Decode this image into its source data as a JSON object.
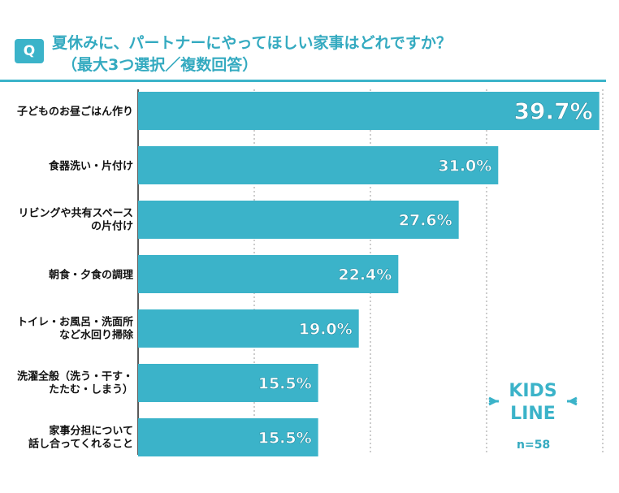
{
  "header": {
    "badge": "Q",
    "title_line1": "夏休みに、パートナーにやってほしい家事はどれですか？",
    "title_line2": "（最大3つ選択／複数回答）"
  },
  "sample": "n=58",
  "logo": {
    "top": "KIDS",
    "bottom": "LINE"
  },
  "colors": {
    "bar": "#3bb3c9",
    "title": "#34aac0",
    "text": "#111111"
  },
  "chart_data": {
    "type": "bar",
    "orientation": "horizontal",
    "categories": [
      [
        "子どものお昼ごはん作り"
      ],
      [
        "食器洗い・片付け"
      ],
      [
        "リビングや共有スペース",
        "の片付け"
      ],
      [
        "朝食・夕食の調理"
      ],
      [
        "トイレ・お風呂・洗面所",
        "など水回り掃除"
      ],
      [
        "洗濯全般（洗う・干す・",
        "たたむ・しまう）"
      ],
      [
        "家事分担について",
        "話し合ってくれること"
      ]
    ],
    "values": [
      39.7,
      31.0,
      27.6,
      22.4,
      19.0,
      15.5,
      15.5
    ],
    "labels": [
      "39.7%",
      "31.0%",
      "27.6%",
      "22.4%",
      "19.0%",
      "15.5%",
      "15.5%"
    ],
    "xlim": [
      0,
      40
    ],
    "grid": true
  }
}
